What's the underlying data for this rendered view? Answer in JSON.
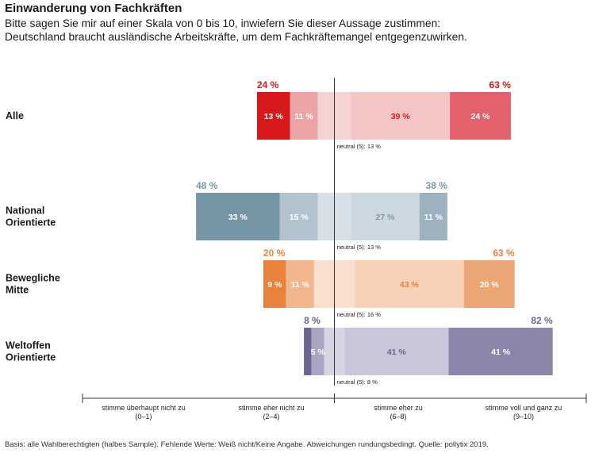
{
  "title": "Einwanderung von Fachkräften",
  "subtitle_lines": [
    "Bitte sagen Sie mir auf einer Skala von 0 bis 10, inwiefern Sie dieser Aussage zustimmen:",
    "Deutschland braucht ausländische Arbeitskräfte, um dem Fachkräftemangel entgegenzuwirken."
  ],
  "footnote": "Basis: alle Wahlberechtigten (halbes Sample). Fehlende Werte: Weiß nicht/Keine Angabe. Abweichungen rundungsbedingt. Quelle: pollytix 2019.",
  "chart_data": {
    "type": "bar",
    "subtype": "diverging-stacked-horizontal",
    "scale_categories": [
      "stimme überhaupt nicht zu (0–1)",
      "stimme eher nicht zu (2–4)",
      "neutral (5)",
      "stimme eher zu (6–8)",
      "stimme voll und ganz zu (9–10)"
    ],
    "axis_labels": [
      [
        "stimme überhaupt nicht zu",
        "(0–1)"
      ],
      [
        "stimme eher nicht zu",
        "(2–4)"
      ],
      [
        "stimme eher zu",
        "(6–8)"
      ],
      [
        "stimme voll und ganz zu",
        "(9–10)"
      ]
    ],
    "groups": [
      {
        "label": [
          "Alle"
        ],
        "values": [
          13,
          11,
          13,
          39,
          24
        ],
        "disagree_total": "24 %",
        "agree_total": "63 %",
        "neutral_label": "neutral (5): 13 %",
        "colors": [
          "#d7191c",
          "#eca4a6",
          "#f6d3d3",
          "#f5c4c5",
          "#e2616c"
        ],
        "label_colors": [
          "#ffffff",
          "#ffffff",
          null,
          "#d7191c",
          "#ffffff"
        ],
        "total_color": "#d7191c"
      },
      {
        "label": [
          "National",
          "Orientierte"
        ],
        "values": [
          33,
          15,
          13,
          27,
          11
        ],
        "disagree_total": "48 %",
        "agree_total": "38 %",
        "neutral_label": "neutral (5): 13 %",
        "colors": [
          "#7595a5",
          "#b2c3cd",
          "#d6e0e6",
          "#ccd8df",
          "#9cb2bf"
        ],
        "label_colors": [
          "#ffffff",
          "#ffffff",
          null,
          "#7a97a7",
          "#ffffff"
        ],
        "total_color": "#7a97a7"
      },
      {
        "label": [
          "Bewegliche",
          "Mitte"
        ],
        "values": [
          9,
          11,
          16,
          43,
          20
        ],
        "disagree_total": "20 %",
        "agree_total": "63 %",
        "neutral_label": "neutral (5): 16 %",
        "colors": [
          "#e8823c",
          "#f3b78f",
          "#fadfcf",
          "#f8d2b7",
          "#eda774"
        ],
        "label_colors": [
          "#ffffff",
          "#ffffff",
          null,
          "#e8823c",
          "#ffffff"
        ],
        "total_color": "#e8823c"
      },
      {
        "label": [
          "Weltoffen",
          "Orientierte"
        ],
        "values": [
          3,
          5,
          8,
          41,
          41
        ],
        "disagree_total": "8 %",
        "agree_total": "82 %",
        "neutral_label": "neutral (5): 8 %",
        "colors": [
          "#6c6591",
          "#aaa5c2",
          "#d6d3e2",
          "#c9c6d9",
          "#8c84a9"
        ],
        "label_colors": [
          null,
          "#ffffff",
          null,
          "#6c6591",
          "#ffffff"
        ],
        "total_color": "#6c6591"
      }
    ]
  }
}
